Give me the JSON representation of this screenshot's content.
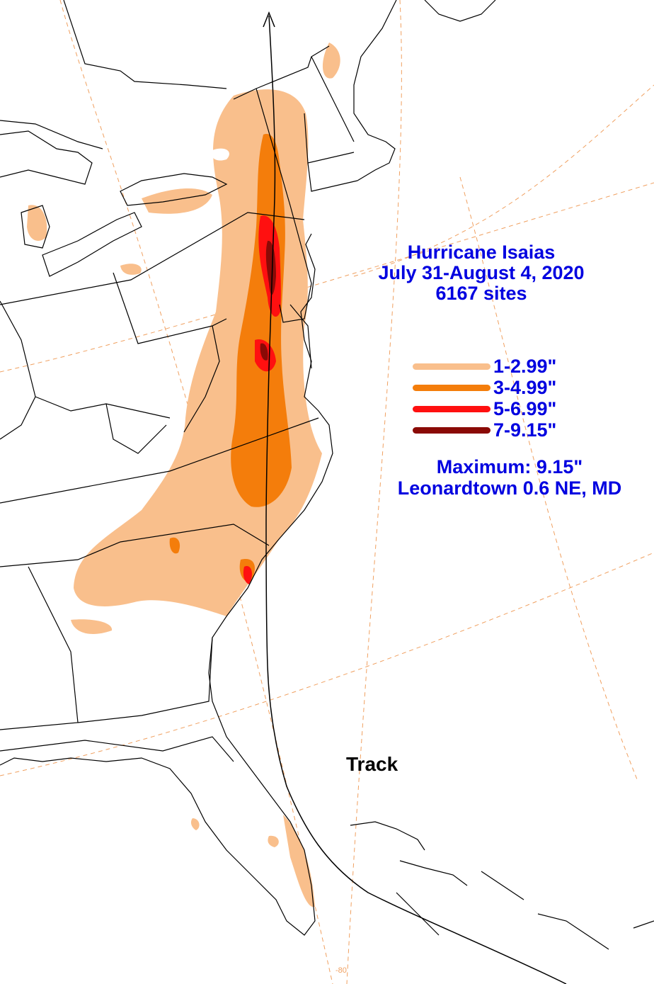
{
  "title": {
    "line1": "Hurricane Isaias",
    "line2": "July 31-August 4, 2020",
    "line3": "6167 sites",
    "color": "#0000e0"
  },
  "legend": [
    {
      "label": "1-2.99\"",
      "color": "#f9bf8c"
    },
    {
      "label": "3-4.99\"",
      "color": "#f47d0b"
    },
    {
      "label": "5-6.99\"",
      "color": "#ff1010"
    },
    {
      "label": "7-9.15\"",
      "color": "#8a0a06"
    }
  ],
  "maximum": {
    "line1": "Maximum:  9.15\"",
    "line2": "Leonardtown 0.6 NE, MD"
  },
  "track_label": "Track",
  "longitude_label": "-80",
  "colors": {
    "graticule": "#f0a060",
    "border": "#000000",
    "background": "#ffffff"
  }
}
